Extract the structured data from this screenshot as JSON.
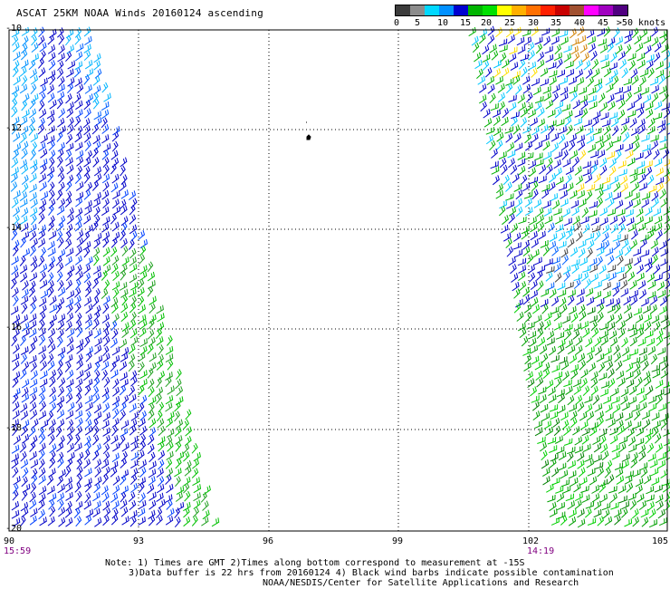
{
  "title": "ASCAT 25KM NOAA Winds 20160124 ascending",
  "color_scale": {
    "labels": [
      "0",
      "5",
      "10",
      "15",
      "20",
      "25",
      "30",
      "35",
      "40",
      "45",
      ">50 knots"
    ],
    "colors": [
      "#3c3c3c",
      "#8c8c8c",
      "#00d8ff",
      "#0090ff",
      "#0000d0",
      "#00b400",
      "#00e000",
      "#ffff00",
      "#ffb000",
      "#ff7000",
      "#ff2000",
      "#c80000",
      "#a05030",
      "#ff00ff",
      "#a000c0",
      "#500080"
    ]
  },
  "axes": {
    "lat_labels": [
      "-10",
      "-12",
      "-14",
      "-16",
      "-18",
      "-20"
    ],
    "lon_labels": [
      "90",
      "93",
      "96",
      "99",
      "102",
      "105"
    ]
  },
  "times": {
    "left": "15:59",
    "right": "14:19"
  },
  "notes": {
    "line1": "Note: 1) Times are GMT 2)Times along bottom correspond to measurement at -15S",
    "line2": "3)Data buffer is 22 hrs from 20160124 4) Black wind barbs indicate possible contamination",
    "line3": "NOAA/NESDIS/Center for Satellite Applications and Research"
  }
}
